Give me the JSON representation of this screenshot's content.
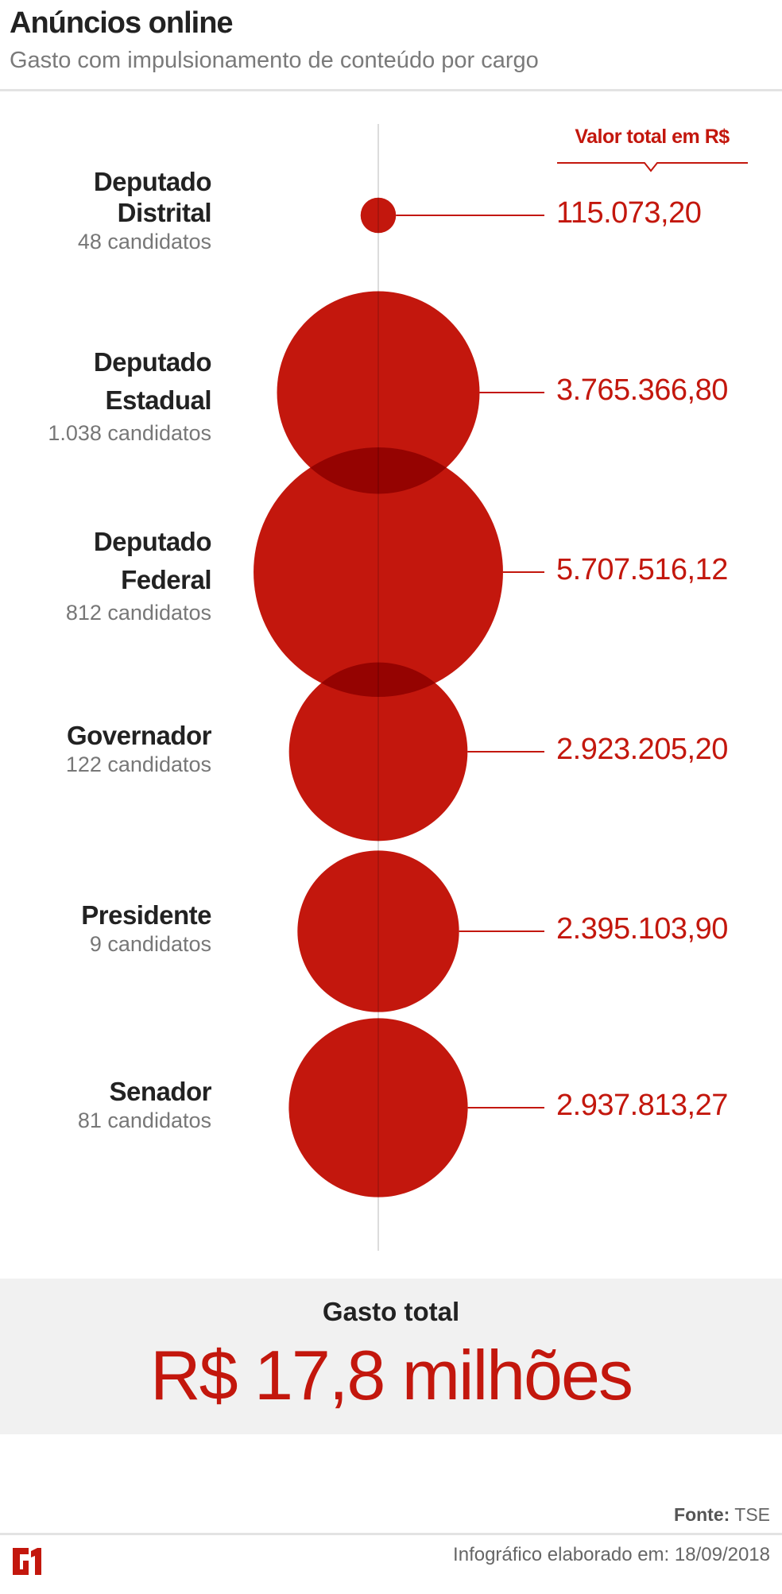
{
  "header": {
    "title": "Anúncios online",
    "subtitle": "Gasto com impulsionamento de conteúdo por cargo"
  },
  "chart_data": {
    "type": "bubble",
    "value_header": "Valor total em R$",
    "categories": [
      "Deputado Distrital",
      "Deputado Estadual",
      "Deputado Federal",
      "Governador",
      "Presidente",
      "Senador"
    ],
    "rows": [
      {
        "name_lines": [
          "Deputado",
          "Distrital"
        ],
        "candidates": "48 candidatos",
        "value": 115073.2,
        "value_label": "115.073,20"
      },
      {
        "name_lines": [
          "Deputado",
          "Estadual"
        ],
        "candidates": "1.038 candidatos",
        "value": 3765366.8,
        "value_label": "3.765.366,80"
      },
      {
        "name_lines": [
          "Deputado",
          "Federal"
        ],
        "candidates": "812 candidatos",
        "value": 5707516.12,
        "value_label": "5.707.516,12"
      },
      {
        "name_lines": [
          "Governador"
        ],
        "candidates": "122 candidatos",
        "value": 2923205.2,
        "value_label": "2.923.205,20"
      },
      {
        "name_lines": [
          "Presidente"
        ],
        "candidates": "9 candidatos",
        "value": 2395103.9,
        "value_label": "2.395.103,90"
      },
      {
        "name_lines": [
          "Senador"
        ],
        "candidates": "81 candidatos",
        "value": 2937813.27,
        "value_label": "2.937.813,27"
      }
    ],
    "color": "#c3170d"
  },
  "total": {
    "label": "Gasto total",
    "value": "R$ 17,8 milhões"
  },
  "footer": {
    "source_label": "Fonte:",
    "source": "TSE",
    "credit": "Infográfico elaborado em: 18/09/2018",
    "logo": "G1"
  }
}
